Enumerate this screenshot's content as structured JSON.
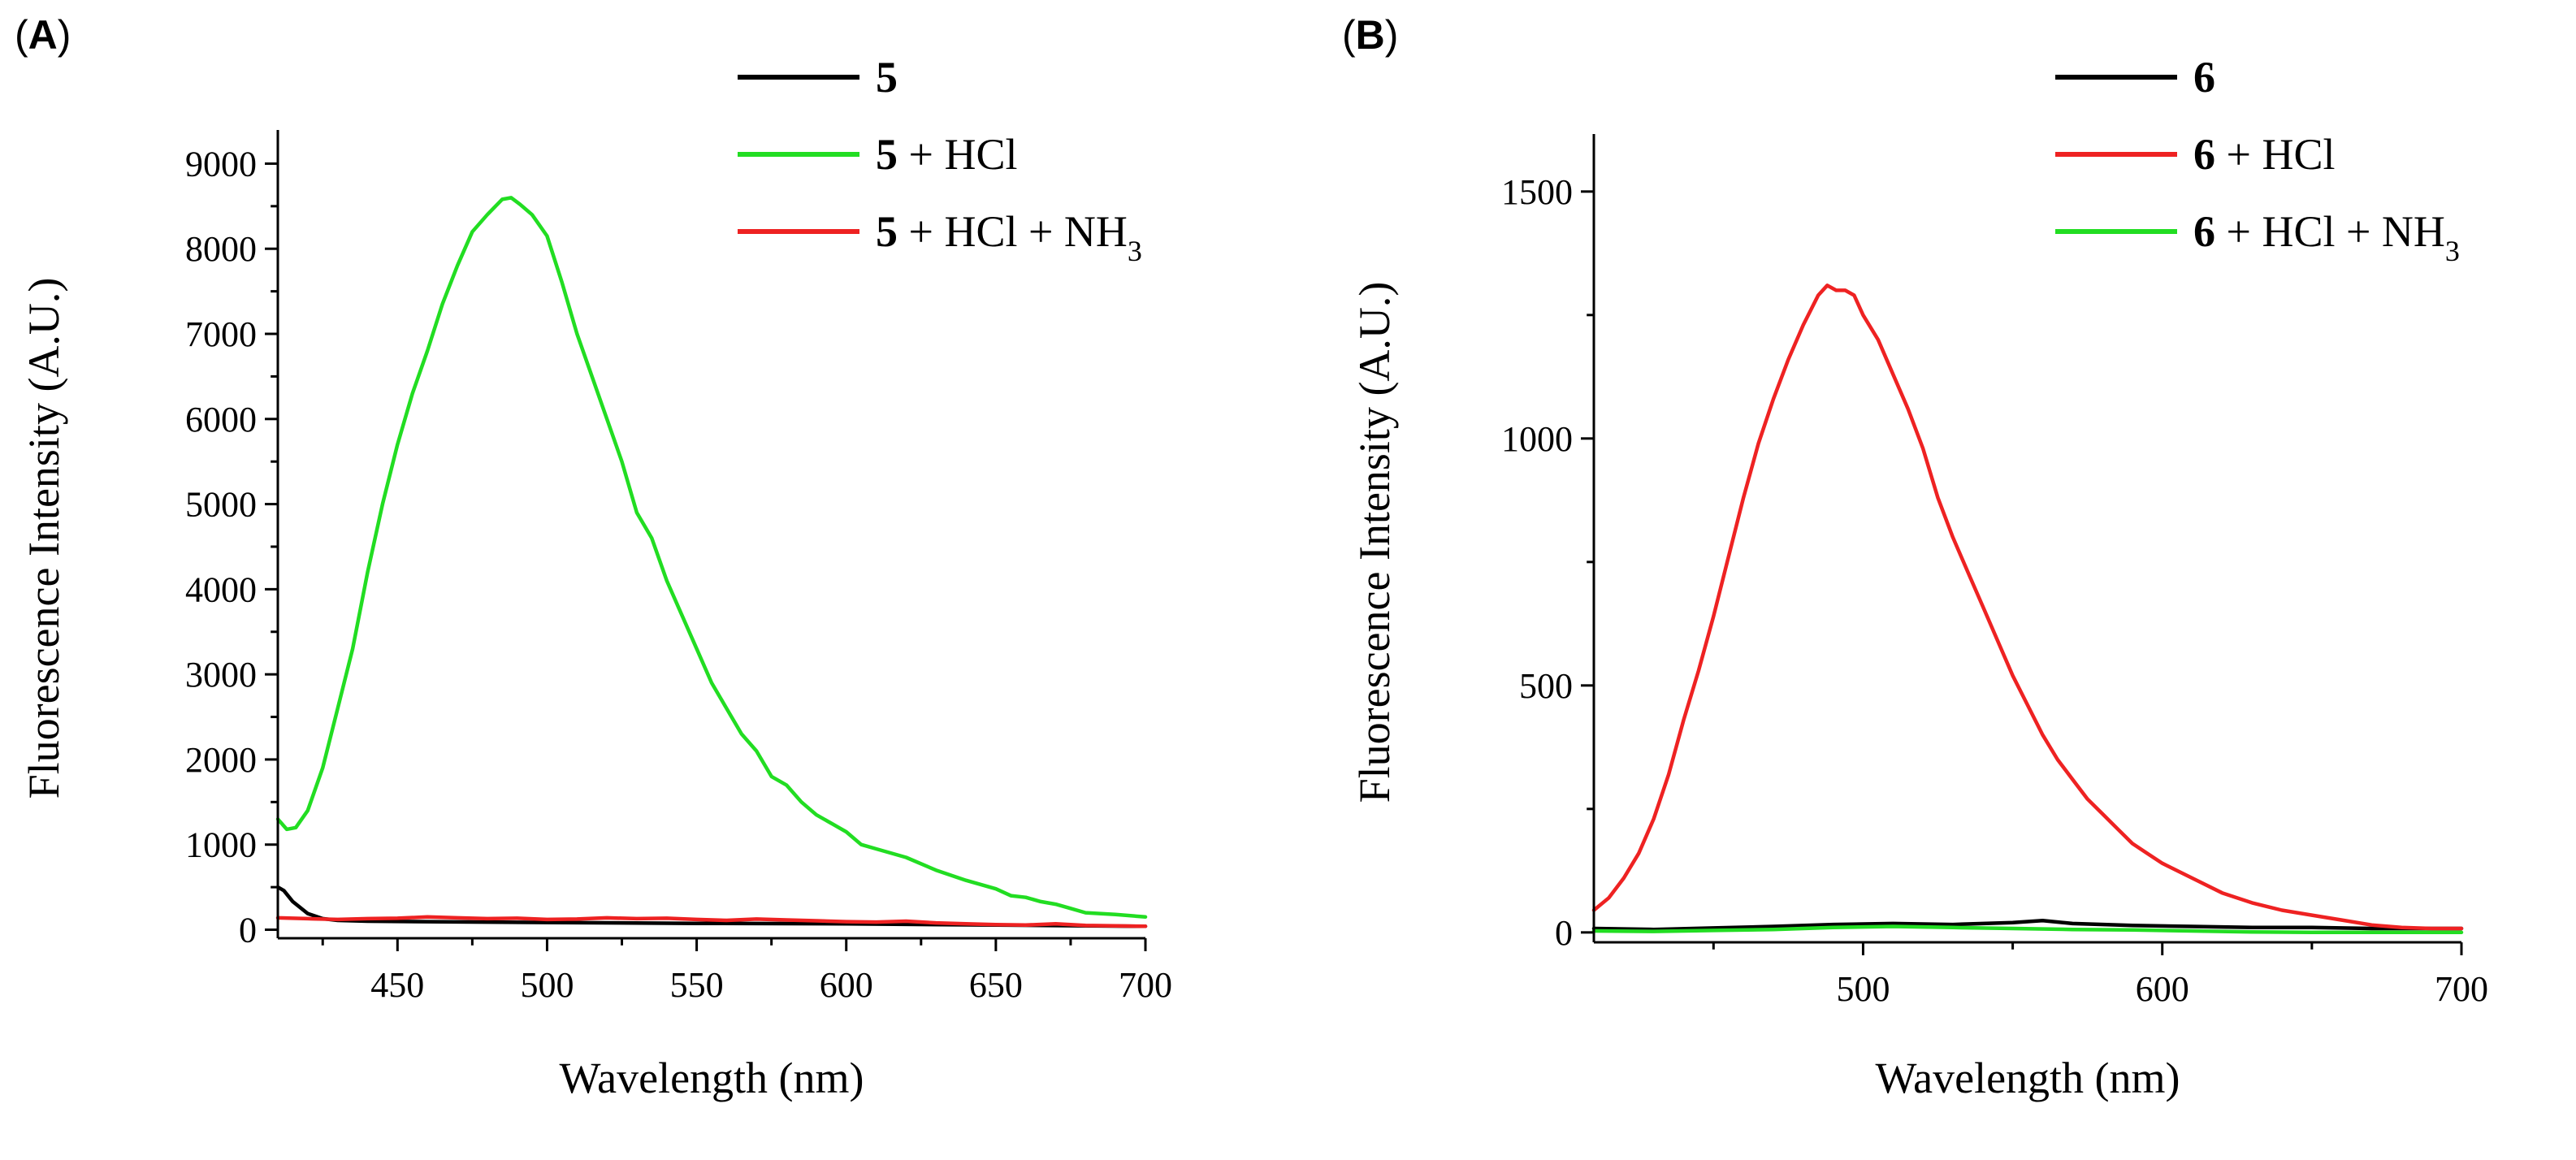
{
  "chart_data": [
    {
      "type": "line",
      "panel_label": "A",
      "xlabel": "Wavelength (nm)",
      "ylabel": "Fluorescence Intensity (A.U.)",
      "xlim": [
        410,
        700
      ],
      "ylim": [
        -100,
        9300
      ],
      "xticks": [
        450,
        500,
        550,
        600,
        650,
        700
      ],
      "xtick_labels": [
        "450",
        "500",
        "550",
        "600",
        "650",
        "700"
      ],
      "yticks": [
        0,
        1000,
        2000,
        3000,
        4000,
        5000,
        6000,
        7000,
        8000,
        9000
      ],
      "ytick_labels": [
        "0",
        "1000",
        "2000",
        "3000",
        "4000",
        "5000",
        "6000",
        "7000",
        "8000",
        "9000"
      ],
      "legend_position": "top-right",
      "series": [
        {
          "name": "5",
          "compound": "5",
          "suffix": "",
          "subscript": "",
          "color": "#000000",
          "x": [
            410,
            412,
            415,
            420,
            425,
            430,
            440,
            460,
            500,
            550,
            600,
            650,
            700
          ],
          "y": [
            500,
            460,
            330,
            190,
            130,
            110,
            100,
            95,
            85,
            75,
            70,
            55,
            40
          ]
        },
        {
          "name": "5 + HCl",
          "compound": "5",
          "suffix": " + HCl",
          "subscript": "",
          "color": "#22dd22",
          "x": [
            410,
            413,
            416,
            420,
            425,
            430,
            435,
            440,
            445,
            450,
            455,
            460,
            465,
            470,
            475,
            480,
            485,
            488,
            491,
            495,
            500,
            505,
            510,
            515,
            520,
            525,
            530,
            535,
            540,
            545,
            550,
            555,
            560,
            565,
            570,
            575,
            580,
            585,
            590,
            595,
            600,
            605,
            610,
            620,
            630,
            640,
            650,
            655,
            660,
            665,
            670,
            675,
            680,
            690,
            700
          ],
          "y": [
            1300,
            1180,
            1200,
            1400,
            1900,
            2600,
            3300,
            4200,
            5000,
            5700,
            6300,
            6800,
            7350,
            7800,
            8200,
            8400,
            8580,
            8600,
            8520,
            8400,
            8150,
            7600,
            7000,
            6500,
            6000,
            5500,
            4900,
            4600,
            4100,
            3700,
            3300,
            2900,
            2600,
            2300,
            2100,
            1800,
            1700,
            1500,
            1350,
            1250,
            1150,
            1000,
            950,
            850,
            700,
            580,
            480,
            400,
            380,
            330,
            300,
            250,
            200,
            180,
            150
          ]
        },
        {
          "name": "5 + HCl + NH3",
          "compound": "5",
          "suffix": " + HCl + NH",
          "subscript": "3",
          "color": "#ee2222",
          "x": [
            410,
            420,
            430,
            440,
            450,
            460,
            470,
            480,
            490,
            500,
            510,
            520,
            530,
            540,
            550,
            560,
            570,
            580,
            590,
            600,
            610,
            620,
            630,
            640,
            650,
            660,
            670,
            680,
            690,
            700
          ],
          "y": [
            140,
            130,
            120,
            130,
            135,
            150,
            140,
            130,
            135,
            120,
            125,
            140,
            130,
            135,
            120,
            110,
            125,
            115,
            105,
            95,
            90,
            100,
            80,
            70,
            60,
            55,
            70,
            50,
            45,
            40
          ]
        }
      ]
    },
    {
      "type": "line",
      "panel_label": "B",
      "xlabel": "Wavelength (nm)",
      "ylabel": "Fluorescence Intensity (A.U.)",
      "xlim": [
        410,
        700
      ],
      "ylim": [
        -20,
        1600
      ],
      "xticks": [
        500,
        600,
        700
      ],
      "xtick_labels": [
        "500",
        "600",
        "700"
      ],
      "yticks": [
        0,
        500,
        1000,
        1500
      ],
      "ytick_labels": [
        "0",
        "500",
        "1000",
        "1500"
      ],
      "legend_position": "top-right",
      "series": [
        {
          "name": "6",
          "compound": "6",
          "suffix": "",
          "subscript": "",
          "color": "#000000",
          "x": [
            410,
            430,
            450,
            470,
            490,
            510,
            530,
            550,
            560,
            570,
            590,
            610,
            630,
            650,
            670,
            700
          ],
          "y": [
            8,
            6,
            9,
            12,
            16,
            18,
            16,
            20,
            24,
            18,
            14,
            12,
            10,
            10,
            8,
            8
          ]
        },
        {
          "name": "6 + HCl",
          "compound": "6",
          "suffix": " + HCl",
          "subscript": "",
          "color": "#ee2222",
          "x": [
            410,
            415,
            420,
            425,
            430,
            435,
            440,
            445,
            450,
            455,
            460,
            465,
            470,
            475,
            480,
            485,
            488,
            491,
            494,
            497,
            500,
            505,
            510,
            515,
            520,
            525,
            530,
            535,
            540,
            545,
            550,
            555,
            560,
            565,
            570,
            575,
            580,
            585,
            590,
            595,
            600,
            610,
            620,
            630,
            640,
            650,
            660,
            670,
            680,
            690,
            700
          ],
          "y": [
            45,
            70,
            110,
            160,
            230,
            320,
            430,
            530,
            640,
            760,
            880,
            990,
            1080,
            1160,
            1230,
            1290,
            1310,
            1300,
            1300,
            1290,
            1250,
            1200,
            1130,
            1060,
            980,
            880,
            800,
            730,
            660,
            590,
            520,
            460,
            400,
            350,
            310,
            270,
            240,
            210,
            180,
            160,
            140,
            110,
            80,
            60,
            45,
            35,
            25,
            15,
            10,
            8,
            8
          ]
        },
        {
          "name": "6 + HCl + NH3",
          "compound": "6",
          "suffix": " + HCl + NH",
          "subscript": "3",
          "color": "#22dd22",
          "x": [
            410,
            430,
            450,
            470,
            490,
            510,
            530,
            550,
            570,
            590,
            610,
            630,
            650,
            670,
            690,
            700
          ],
          "y": [
            3,
            2,
            4,
            6,
            10,
            12,
            10,
            8,
            6,
            5,
            3,
            1,
            0,
            0,
            0,
            0
          ]
        }
      ]
    }
  ]
}
